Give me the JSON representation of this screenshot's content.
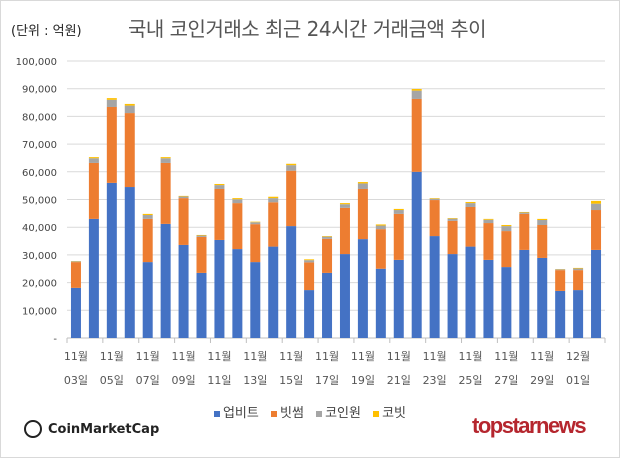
{
  "unit_label": "(단위 : 억원)",
  "chart_data": {
    "type": "bar",
    "stacked": true,
    "title": "국내 코인거래소 최근 24시간 거래금액 추이",
    "xlabel": "",
    "ylabel": "",
    "ylim": [
      0,
      100000
    ],
    "yticks": [
      "-",
      "10,000",
      "20,000",
      "30,000",
      "40,000",
      "50,000",
      "60,000",
      "70,000",
      "80,000",
      "90,000",
      "100,000"
    ],
    "grid": true,
    "legend_position": "bottom",
    "categories": [
      "11월 03일",
      "11월 04일",
      "11월 05일",
      "11월 06일",
      "11월 07일",
      "11월 08일",
      "11월 09일",
      "11월 10일",
      "11월 11일",
      "11월 12일",
      "11월 13일",
      "11월 14일",
      "11월 15일",
      "11월 16일",
      "11월 17일",
      "11월 18일",
      "11월 19일",
      "11월 20일",
      "11월 21일",
      "11월 22일",
      "11월 23일",
      "11월 24일",
      "11월 25일",
      "11월 26일",
      "11월 27일",
      "11월 28일",
      "11월 29일",
      "11월 30일",
      "12월 01일",
      "12월 02일"
    ],
    "tick_labels": [
      {
        "month": "11월",
        "day": "03일"
      },
      {
        "month": "11월",
        "day": "05일"
      },
      {
        "month": "11월",
        "day": "07일"
      },
      {
        "month": "11월",
        "day": "09일"
      },
      {
        "month": "11월",
        "day": "11일"
      },
      {
        "month": "11월",
        "day": "13일"
      },
      {
        "month": "11월",
        "day": "15일"
      },
      {
        "month": "11월",
        "day": "17일"
      },
      {
        "month": "11월",
        "day": "19일"
      },
      {
        "month": "11월",
        "day": "21일"
      },
      {
        "month": "11월",
        "day": "23일"
      },
      {
        "month": "11월",
        "day": "25일"
      },
      {
        "month": "11월",
        "day": "27일"
      },
      {
        "month": "11월",
        "day": "29일"
      },
      {
        "month": "12월",
        "day": "01일"
      }
    ],
    "series": [
      {
        "name": "업비트",
        "color": "#4472C4",
        "values": [
          18100,
          43000,
          56000,
          54500,
          27400,
          41200,
          33600,
          23500,
          35400,
          32100,
          27400,
          33000,
          40400,
          17300,
          23500,
          30300,
          35700,
          25000,
          28200,
          60000,
          36800,
          30300,
          33000,
          28200,
          25600,
          31800,
          28900,
          17000,
          17300,
          31800
        ]
      },
      {
        "name": "빗썸",
        "color": "#ED7D31",
        "values": [
          9300,
          20200,
          27400,
          26700,
          15600,
          22000,
          16900,
          13000,
          18400,
          16600,
          13700,
          16000,
          20000,
          10000,
          12300,
          16700,
          18100,
          14300,
          16600,
          26300,
          13000,
          12000,
          14300,
          13300,
          13000,
          13000,
          11900,
          7500,
          7200,
          14400
        ]
      },
      {
        "name": "코인원",
        "color": "#A5A5A5",
        "values": [
          300,
          1700,
          2600,
          2700,
          1400,
          1700,
          600,
          500,
          1400,
          1400,
          700,
          1500,
          2000,
          800,
          800,
          1300,
          2000,
          1300,
          1400,
          3000,
          500,
          800,
          1400,
          1200,
          1800,
          500,
          1800,
          300,
          600,
          2300
        ]
      },
      {
        "name": "코빗",
        "color": "#FFC000",
        "values": [
          100,
          400,
          600,
          600,
          400,
          400,
          200,
          200,
          400,
          400,
          200,
          500,
          500,
          300,
          200,
          400,
          500,
          400,
          400,
          600,
          200,
          200,
          400,
          300,
          400,
          200,
          400,
          100,
          200,
          1000
        ]
      }
    ]
  },
  "logos": {
    "left": "CoinMarketCap",
    "right": "topstarnews"
  }
}
